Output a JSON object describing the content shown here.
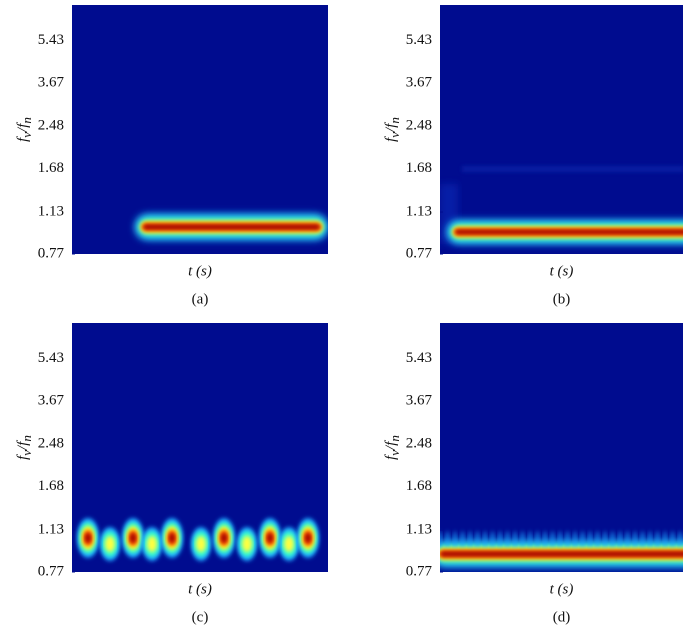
{
  "chart_data": [
    {
      "type": "heatmap",
      "ylabel": "fv/fn",
      "xlabel": "t (s)",
      "caption": "(a)",
      "ylim": [
        0.77,
        7.5
      ],
      "yticks": [
        0.77,
        1.13,
        1.68,
        2.48,
        3.67,
        5.43
      ],
      "log_scale": true
    },
    {
      "type": "heatmap",
      "ylabel": "fv/fn",
      "xlabel": "t (s)",
      "caption": "(b)",
      "ylim": [
        0.77,
        7.5
      ],
      "yticks": [
        0.77,
        1.13,
        1.68,
        2.48,
        3.67,
        5.43
      ],
      "log_scale": true
    },
    {
      "type": "heatmap",
      "ylabel": "fv/fn",
      "xlabel": "t (s)",
      "caption": "(c)",
      "ylim": [
        0.77,
        7.5
      ],
      "yticks": [
        0.77,
        1.13,
        1.68,
        2.48,
        3.67,
        5.43
      ],
      "log_scale": true
    },
    {
      "type": "heatmap",
      "ylabel": "fv/fn",
      "xlabel": "t (s)",
      "caption": "(d)",
      "ylim": [
        0.77,
        7.5
      ],
      "yticks": [
        0.77,
        1.13,
        1.68,
        2.48,
        3.67,
        5.43
      ],
      "log_scale": true
    }
  ]
}
